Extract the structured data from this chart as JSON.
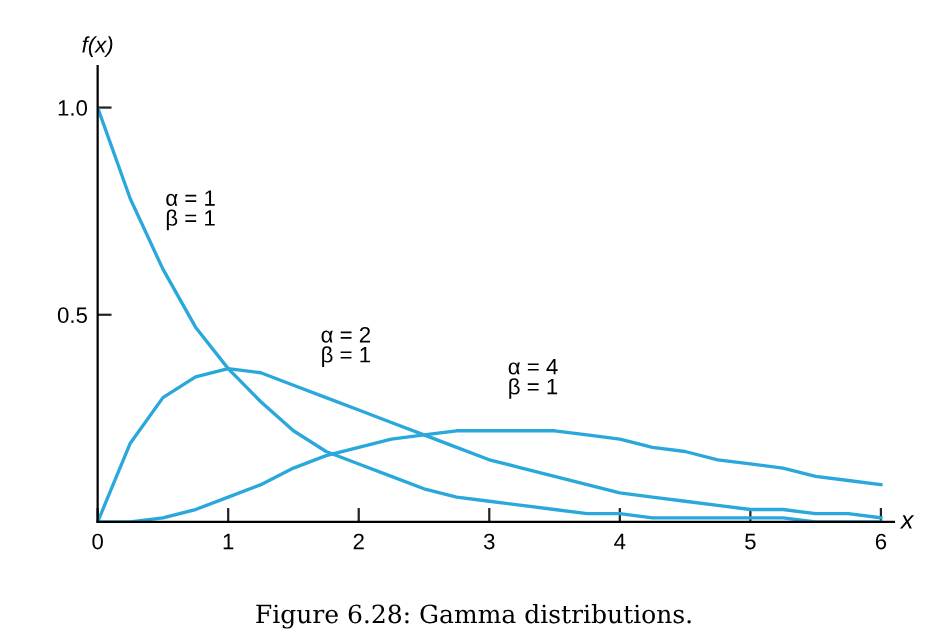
{
  "chart_data": {
    "type": "line",
    "xlabel": "x",
    "ylabel": "f(x)",
    "x": [
      0,
      0.25,
      0.5,
      0.75,
      1,
      1.25,
      1.5,
      1.75,
      2,
      2.25,
      2.5,
      2.75,
      3,
      3.25,
      3.5,
      3.75,
      4,
      4.25,
      4.5,
      4.75,
      5,
      5.25,
      5.5,
      5.75,
      6
    ],
    "series": [
      {
        "color": "#2aa7db",
        "values": [
          1.0,
          0.78,
          0.61,
          0.47,
          0.37,
          0.29,
          0.22,
          0.17,
          0.14,
          0.11,
          0.08,
          0.06,
          0.05,
          0.04,
          0.03,
          0.02,
          0.02,
          0.01,
          0.01,
          0.01,
          0.01,
          0.01,
          0.0,
          0.0,
          0.0
        ]
      },
      {
        "color": "#2aa7db",
        "values": [
          0.0,
          0.19,
          0.3,
          0.35,
          0.37,
          0.36,
          0.33,
          0.3,
          0.27,
          0.24,
          0.21,
          0.18,
          0.15,
          0.13,
          0.11,
          0.09,
          0.07,
          0.06,
          0.05,
          0.04,
          0.03,
          0.03,
          0.02,
          0.02,
          0.01
        ]
      },
      {
        "color": "#2aa7db",
        "values": [
          0.0,
          0.0,
          0.01,
          0.03,
          0.06,
          0.09,
          0.13,
          0.16,
          0.18,
          0.2,
          0.21,
          0.22,
          0.22,
          0.22,
          0.22,
          0.21,
          0.2,
          0.18,
          0.17,
          0.15,
          0.14,
          0.13,
          0.11,
          0.1,
          0.09
        ]
      }
    ],
    "annotations": [
      "α = 1\nβ = 1",
      "α = 2\nβ = 1",
      "α = 4\nβ = 1",
      "Figure 6.28: Gamma distributions."
    ],
    "xlim": [
      0,
      6.1
    ],
    "ylim": [
      0,
      1.1
    ],
    "xticks": [
      0,
      1,
      2,
      3,
      4,
      5,
      6
    ],
    "yticks": [
      0.5,
      {
        "value": 1.0,
        "label": "1.0"
      }
    ]
  }
}
